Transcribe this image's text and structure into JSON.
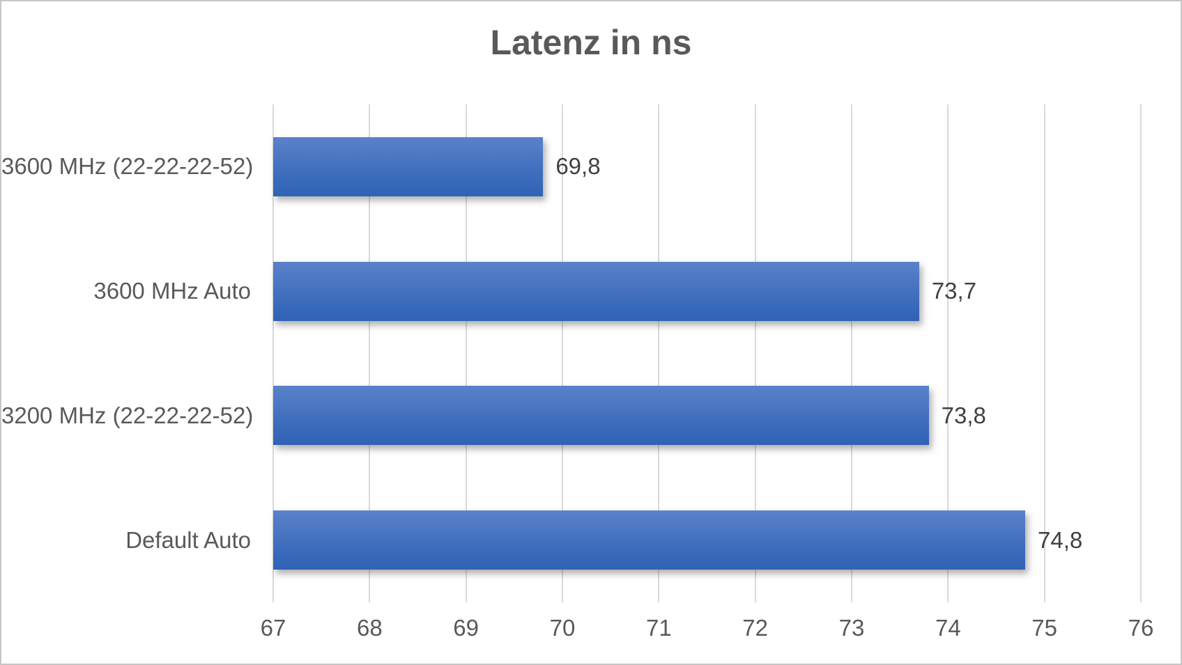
{
  "chart_data": {
    "type": "bar",
    "orientation": "horizontal",
    "title": "Latenz in ns",
    "categories": [
      "3600 MHz (22-22-22-52)",
      "3600 MHz Auto",
      "3200 MHz (22-22-22-52)",
      "Default Auto"
    ],
    "values": [
      69.8,
      73.7,
      73.8,
      74.8
    ],
    "value_labels": [
      "69,8",
      "73,7",
      "73,8",
      "74,8"
    ],
    "xlabel": "",
    "ylabel": "",
    "xlim": [
      67,
      76
    ],
    "x_ticks": [
      "67",
      "68",
      "69",
      "70",
      "71",
      "72",
      "73",
      "74",
      "75",
      "76"
    ],
    "grid": true,
    "legend": "none",
    "colors": {
      "bar_gradient_top": "#5b82ca",
      "bar_gradient_bottom": "#2f62b5",
      "gridline": "#d9d9d9",
      "title_text": "#595959",
      "axis_text": "#595959",
      "value_text": "#404040",
      "background": "#ffffff",
      "border": "#c6c6c6"
    }
  }
}
